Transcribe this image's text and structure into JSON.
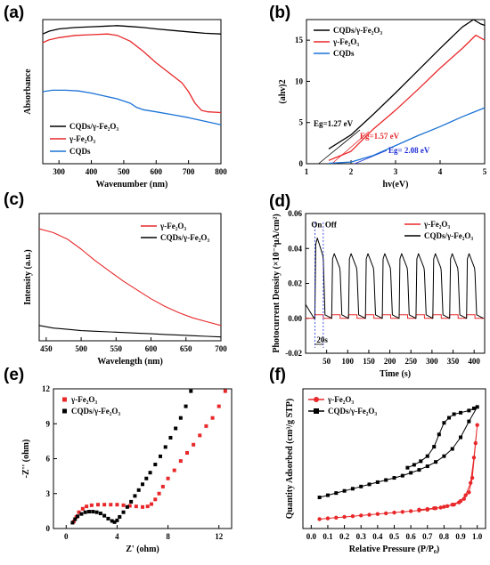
{
  "chart_data": [
    {
      "type": "line",
      "panel": "(a)",
      "xlabel": "Wavenumber (nm)",
      "ylabel": "Absorbance",
      "xlim": [
        250,
        800
      ],
      "ylim": [
        0,
        1.0
      ],
      "xticks": [
        "300",
        "400",
        "500",
        "600",
        "700",
        "800"
      ],
      "yticks_shown": false,
      "legend_position": "bottom-left",
      "series": [
        {
          "name": "CQDs/γ-Fe₂O₃",
          "color": "#000000",
          "x": [
            250,
            270,
            300,
            350,
            400,
            450,
            480,
            520,
            560,
            600,
            650,
            700,
            750,
            800
          ],
          "y": [
            0.9,
            0.92,
            0.935,
            0.945,
            0.95,
            0.955,
            0.958,
            0.952,
            0.945,
            0.935,
            0.925,
            0.915,
            0.905,
            0.9
          ]
        },
        {
          "name": "γ-Fe₂O₃",
          "color": "#e8282a",
          "x": [
            250,
            270,
            300,
            350,
            400,
            450,
            480,
            520,
            560,
            600,
            640,
            680,
            700,
            720,
            740,
            760,
            800
          ],
          "y": [
            0.84,
            0.86,
            0.875,
            0.89,
            0.895,
            0.9,
            0.89,
            0.85,
            0.78,
            0.7,
            0.63,
            0.56,
            0.5,
            0.42,
            0.37,
            0.36,
            0.355
          ]
        },
        {
          "name": "CQDs",
          "color": "#1a72d6",
          "x": [
            250,
            280,
            320,
            360,
            400,
            440,
            480,
            520,
            540,
            560,
            600,
            650,
            700,
            750,
            800
          ],
          "y": [
            0.5,
            0.51,
            0.51,
            0.505,
            0.49,
            0.47,
            0.45,
            0.42,
            0.39,
            0.375,
            0.36,
            0.34,
            0.32,
            0.295,
            0.27
          ]
        }
      ]
    },
    {
      "type": "line",
      "panel": "(b)",
      "xlabel": "hv(eV)",
      "ylabel": "(ahv)2",
      "xlim": [
        1,
        5
      ],
      "ylim": [
        0,
        17.5
      ],
      "xticks": [
        "1",
        "2",
        "3",
        "4",
        "5"
      ],
      "yticks": [
        "0",
        "5",
        "10",
        "15"
      ],
      "legend_position": "top-left",
      "annotations": [
        {
          "text": "Eg=1.27 eV",
          "color": "#000000"
        },
        {
          "text": "Eg=1.57 eV",
          "color": "#e8282a"
        },
        {
          "text": "Eg= 2.08 eV",
          "color": "#1a2ad6"
        }
      ],
      "series": [
        {
          "name": "CQDs/γ-Fe₂O₃",
          "color": "#000000",
          "x": [
            1.5,
            2.0,
            2.5,
            3.0,
            3.5,
            4.0,
            4.5,
            4.75,
            4.9,
            5.0
          ],
          "y": [
            1.8,
            3.5,
            6.0,
            8.6,
            11.3,
            14.0,
            16.6,
            17.5,
            17.0,
            16.8
          ]
        },
        {
          "name": "γ-Fe₂O₃",
          "color": "#e8282a",
          "x": [
            1.5,
            2.0,
            2.5,
            3.0,
            3.5,
            4.0,
            4.5,
            4.8,
            5.0
          ],
          "y": [
            0.4,
            1.5,
            4.2,
            6.5,
            9.0,
            11.6,
            14.0,
            15.6,
            15.0
          ]
        },
        {
          "name": "CQDs",
          "color": "#1a72d6",
          "x": [
            1.5,
            2.0,
            2.5,
            3.0,
            3.5,
            4.0,
            4.5,
            5.0
          ],
          "y": [
            0.05,
            0.2,
            1.0,
            2.2,
            3.4,
            4.5,
            5.7,
            6.8
          ]
        }
      ],
      "fit_lines": [
        {
          "color": "#000000",
          "x": [
            1.27,
            2.2
          ],
          "y": [
            0,
            4.1
          ]
        },
        {
          "color": "#e8282a",
          "x": [
            1.57,
            2.4
          ],
          "y": [
            0,
            3.9
          ]
        },
        {
          "color": "#1a2ad6",
          "x": [
            2.08,
            2.8
          ],
          "y": [
            0,
            1.6
          ]
        }
      ]
    },
    {
      "type": "line",
      "panel": "(c)",
      "xlabel": "Wavelength (nm)",
      "ylabel": "Intensity (a.u.)",
      "xlim": [
        440,
        700
      ],
      "ylim": [
        0,
        1.0
      ],
      "xticks": [
        "450",
        "500",
        "550",
        "600",
        "650",
        "700"
      ],
      "yticks_shown": false,
      "legend_position": "top-right",
      "series": [
        {
          "name": "γ-Fe₂O₃",
          "color": "#e8282a",
          "x": [
            440,
            460,
            480,
            500,
            520,
            540,
            560,
            580,
            600,
            620,
            640,
            660,
            680,
            700
          ],
          "y": [
            0.88,
            0.85,
            0.8,
            0.72,
            0.63,
            0.55,
            0.47,
            0.4,
            0.33,
            0.27,
            0.22,
            0.18,
            0.15,
            0.12
          ]
        },
        {
          "name": "CQDs/γ-Fe₂O₃",
          "color": "#000000",
          "x": [
            440,
            460,
            480,
            500,
            520,
            540,
            560,
            580,
            600,
            620,
            640,
            660,
            680,
            700
          ],
          "y": [
            0.12,
            0.1,
            0.09,
            0.08,
            0.075,
            0.07,
            0.065,
            0.06,
            0.055,
            0.05,
            0.045,
            0.04,
            0.035,
            0.03
          ]
        }
      ]
    },
    {
      "type": "line",
      "panel": "(d)",
      "xlabel": "Time (s)",
      "ylabel": "Photocurrent Density (×10⁻⁴μA/cm²)",
      "xlim": [
        0,
        425
      ],
      "ylim": [
        -0.02,
        0.06
      ],
      "xticks": [
        "50",
        "100",
        "150",
        "200",
        "250",
        "300",
        "350",
        "400"
      ],
      "yticks": [
        "-0.02",
        "0.00",
        "0.02",
        "0.04",
        "0.06"
      ],
      "legend_position": "top-right",
      "annotations": [
        {
          "text": "On"
        },
        {
          "text": "Off"
        },
        {
          "text": "20s"
        }
      ],
      "cycle": {
        "first_on_s": 22,
        "period_s": 40,
        "on_duration_s": 20,
        "cycles": 10
      },
      "series": [
        {
          "name": "γ-Fe₂O₃",
          "color": "#e8282a",
          "on_value": 0.002,
          "off_value": 0.0
        },
        {
          "name": "CQDs/γ-Fe₂O₃",
          "color": "#000000",
          "peak_first": 0.046,
          "peak_others": 0.037,
          "off_value": 0.0
        }
      ]
    },
    {
      "type": "scatter",
      "panel": "(e)",
      "xlabel": "Z' (ohm)",
      "ylabel": "-Z'' (ohm)",
      "xlim": [
        -1,
        13
      ],
      "ylim": [
        0,
        12
      ],
      "xticks": [
        "0",
        "4",
        "8",
        "12"
      ],
      "yticks": [
        "0",
        "3",
        "6",
        "9",
        "12"
      ],
      "legend_position": "top-left",
      "series": [
        {
          "name": "γ-Fe₂O₃",
          "color": "#e8282a",
          "marker": "square",
          "x": [
            0.6,
            0.8,
            1.0,
            1.3,
            1.6,
            2.0,
            2.5,
            3.0,
            3.5,
            4.0,
            4.5,
            5.0,
            5.5,
            6.0,
            6.4,
            6.7,
            7.0,
            7.3,
            7.6,
            8.0,
            8.5,
            9.0,
            9.5,
            10.0,
            10.5,
            11.0,
            11.5,
            12.0,
            12.5
          ],
          "y": [
            0.6,
            1.0,
            1.4,
            1.7,
            1.9,
            2.0,
            2.05,
            2.05,
            2.05,
            2.05,
            2.0,
            1.95,
            1.9,
            1.85,
            1.9,
            2.1,
            2.5,
            3.0,
            3.6,
            4.3,
            5.0,
            5.8,
            6.5,
            7.2,
            8.0,
            8.8,
            9.5,
            10.5,
            11.8
          ]
        },
        {
          "name": "CQDs/γ-Fe₂O₃",
          "color": "#000000",
          "marker": "square",
          "x": [
            0.5,
            0.7,
            0.9,
            1.2,
            1.5,
            1.8,
            2.1,
            2.4,
            2.7,
            3.0,
            3.3,
            3.6,
            3.8,
            4.0,
            4.2,
            4.5,
            4.8,
            5.1,
            5.4,
            5.7,
            6.0,
            6.3,
            6.6,
            7.0,
            7.4,
            7.8,
            8.2,
            8.6,
            9.0,
            9.4,
            9.8
          ],
          "y": [
            0.5,
            0.8,
            1.05,
            1.25,
            1.4,
            1.45,
            1.45,
            1.4,
            1.3,
            1.1,
            0.85,
            0.65,
            0.55,
            0.7,
            1.0,
            1.4,
            1.85,
            2.3,
            2.8,
            3.3,
            3.8,
            4.3,
            4.8,
            5.5,
            6.2,
            7.0,
            7.8,
            8.6,
            9.5,
            10.5,
            11.8
          ]
        }
      ]
    },
    {
      "type": "line",
      "panel": "(f)",
      "xlabel": "Relative Pressure (P/P₀)",
      "ylabel": "Quantity Adsorbed (cm³/g STP)",
      "xlim": [
        -0.05,
        1.05
      ],
      "ylim": [
        -8,
        185
      ],
      "xticks": [
        "0.0",
        "0.1",
        "0.2",
        "0.3",
        "0.4",
        "0.5",
        "0.6",
        "0.7",
        "0.8",
        "0.9",
        "1.0"
      ],
      "yticks_shown": false,
      "legend_position": "top-left",
      "series": [
        {
          "name": "γ-Fe₂O₃",
          "color": "#e8282a",
          "marker": "circle",
          "x": [
            0.05,
            0.1,
            0.15,
            0.2,
            0.25,
            0.3,
            0.35,
            0.4,
            0.45,
            0.5,
            0.55,
            0.6,
            0.65,
            0.7,
            0.75,
            0.8,
            0.85,
            0.9,
            0.93,
            0.96,
            0.98,
            1.0,
            0.99,
            0.97,
            0.95,
            0.92,
            0.89,
            0.86,
            0.82,
            0.78,
            0.74,
            0.7,
            0.65
          ],
          "y": [
            5,
            6,
            7,
            8,
            9,
            10,
            11,
            12,
            13,
            14,
            15,
            16,
            17,
            18,
            20,
            22,
            25,
            30,
            38,
            55,
            90,
            135,
            110,
            62,
            42,
            33,
            28,
            25,
            23,
            21,
            20,
            19,
            18
          ]
        },
        {
          "name": "CQDs/γ-Fe₂O₃",
          "color": "#000000",
          "marker": "square",
          "x": [
            0.05,
            0.1,
            0.15,
            0.2,
            0.25,
            0.3,
            0.35,
            0.4,
            0.45,
            0.5,
            0.55,
            0.6,
            0.65,
            0.7,
            0.75,
            0.8,
            0.85,
            0.9,
            0.95,
            1.0,
            0.98,
            0.95,
            0.9,
            0.86,
            0.83,
            0.8,
            0.77,
            0.74,
            0.7,
            0.66,
            0.62,
            0.58
          ],
          "y": [
            35,
            38,
            41,
            44,
            47,
            50,
            53,
            56,
            59,
            62,
            65,
            69,
            73,
            78,
            84,
            92,
            102,
            118,
            140,
            160,
            158,
            155,
            152,
            150,
            145,
            138,
            122,
            105,
            92,
            85,
            80,
            76
          ]
        }
      ]
    }
  ]
}
